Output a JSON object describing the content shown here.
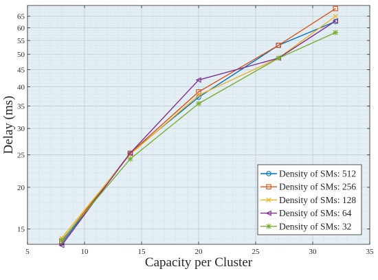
{
  "chart_data": {
    "type": "line",
    "title": "",
    "xlabel": "Capacity per Cluster",
    "ylabel": "Delay (ms)",
    "xlim": [
      5,
      35
    ],
    "ylim": [
      13.5,
      70
    ],
    "yscale": "log",
    "grid": true,
    "legend_position": "bottom-right",
    "x_ticks": [
      "5",
      "10",
      "15",
      "20",
      "25",
      "30",
      "35"
    ],
    "y_ticks": [
      "15",
      "20",
      "25",
      "30",
      "35",
      "40",
      "45",
      "50",
      "55",
      "60",
      "65"
    ],
    "x": [
      8,
      14,
      20,
      27,
      32
    ],
    "series": [
      {
        "name": "Density of SMs: 512",
        "color": "#0072BD",
        "marker": "circle",
        "values": [
          13.6,
          25.3,
          37.2,
          53.2,
          62.7
        ]
      },
      {
        "name": "Density of SMs: 256",
        "color": "#D95319",
        "marker": "square",
        "values": [
          13.8,
          25.3,
          38.6,
          53.2,
          68.5
        ]
      },
      {
        "name": "Density of SMs: 128",
        "color": "#EDB120",
        "marker": "x",
        "values": [
          14.1,
          25.1,
          37.7,
          48.7,
          65.0
        ]
      },
      {
        "name": "Density of SMs: 64",
        "color": "#7E2F8E",
        "marker": "triangle-left",
        "values": [
          13.4,
          25.3,
          41.9,
          48.7,
          62.9
        ]
      },
      {
        "name": "Density of SMs: 32",
        "color": "#77AC30",
        "marker": "star",
        "values": [
          13.9,
          24.3,
          35.6,
          48.7,
          58.1
        ]
      }
    ],
    "colors": {
      "plot_background": "#E4EEF5",
      "grid": "#C9D6DF",
      "axis": "#262626"
    }
  }
}
